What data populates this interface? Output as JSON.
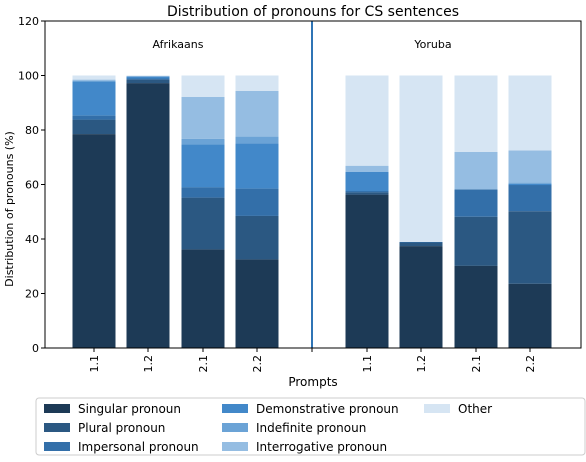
{
  "chart_data": {
    "type": "bar",
    "stacked": true,
    "title": "Distribution of pronouns for CS sentences",
    "xlabel": "Prompts",
    "ylabel": "Distribution of pronouns (%)",
    "ylim": [
      0,
      120
    ],
    "yticks": [
      0,
      20,
      40,
      60,
      80,
      100,
      120
    ],
    "grid": false,
    "legend_position": "bottom",
    "legend_columns": 3,
    "groups": [
      "Afrikaans",
      "Yoruba"
    ],
    "categories": [
      "1.1",
      "1.2",
      "2.1",
      "2.2",
      "1.1",
      "1.2",
      "2.1",
      "2.2"
    ],
    "category_group": [
      "Afrikaans",
      "Afrikaans",
      "Afrikaans",
      "Afrikaans",
      "Yoruba",
      "Yoruba",
      "Yoruba",
      "Yoruba"
    ],
    "series": [
      {
        "name": "Singular pronoun",
        "color": "#1d3a56",
        "values": [
          78.5,
          97.2,
          36.2,
          32.5,
          56.3,
          37.4,
          30.2,
          23.6
        ]
      },
      {
        "name": "Plural pronoun",
        "color": "#2b5882",
        "values": [
          5.3,
          1.3,
          19.0,
          16.0,
          0.8,
          1.3,
          18.0,
          26.6
        ]
      },
      {
        "name": "Impersonal pronoun",
        "color": "#336fa9",
        "values": [
          1.5,
          0.4,
          3.8,
          10.0,
          0.5,
          0.2,
          10.0,
          9.6
        ]
      },
      {
        "name": "Demonstrative pronoun",
        "color": "#4288c9",
        "values": [
          12.6,
          0.8,
          15.8,
          16.6,
          7.0,
          0.0,
          0.0,
          0.5
        ]
      },
      {
        "name": "Indefinite pronoun",
        "color": "#6ba3d6",
        "values": [
          0.0,
          0.0,
          2.0,
          2.6,
          0.0,
          0.0,
          0.0,
          0.4
        ]
      },
      {
        "name": "Interrogative pronoun",
        "color": "#95bde2",
        "values": [
          0.6,
          0.0,
          15.3,
          16.6,
          2.3,
          0.0,
          13.8,
          11.8
        ]
      },
      {
        "name": "Other",
        "color": "#d6e5f3",
        "values": [
          1.5,
          0.3,
          7.9,
          5.7,
          33.1,
          61.1,
          28.0,
          27.5
        ]
      }
    ],
    "divider_color": "#2f74b5"
  }
}
